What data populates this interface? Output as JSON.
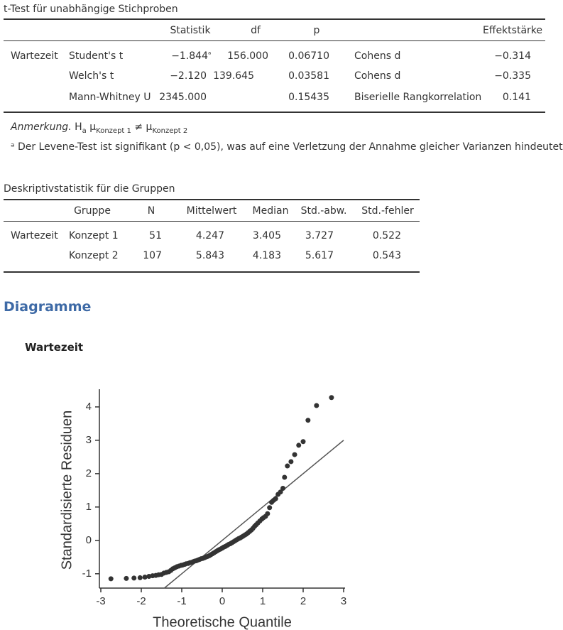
{
  "ttest": {
    "title": "t-Test für unabhängige Stichproben",
    "columns": [
      "Statistik",
      "df",
      "p",
      "Effektstärke"
    ],
    "variable": "Wartezeit",
    "rows": [
      {
        "test": "Student's t",
        "statistic": "−1.844",
        "mark": "ᵃ",
        "df": "156.000",
        "p": "0.06710",
        "effect_type": "Cohens d",
        "effect": "−0.314"
      },
      {
        "test": "Welch's t",
        "statistic": "−2.120",
        "df": "139.645",
        "p": "0.03581",
        "effect_type": "Cohens d",
        "effect": "−0.335"
      },
      {
        "test": "Mann-Whitney U",
        "statistic": "2345.000",
        "p": "0.15435",
        "effect_type": "Biserielle Rangkorrelation",
        "effect": "0.141"
      }
    ],
    "note": {
      "label": "Anmerkung.",
      "h": "H",
      "h_sub": "a",
      "mu1": "μ",
      "sub1": "Konzept 1",
      "neq": "≠",
      "mu2": "μ",
      "sub2": "Konzept 2"
    },
    "footnote": {
      "mark": "ᵃ",
      "text": "Der Levene-Test ist signifikant (p < 0,05), was auf eine Verletzung der Annahme gleicher Varianzen hindeutet"
    }
  },
  "descriptives": {
    "title": "Deskriptivstatistik für die Gruppen",
    "columns": [
      "Gruppe",
      "N",
      "Mittelwert",
      "Median",
      "Std.-abw.",
      "Std.-fehler"
    ],
    "variable": "Wartezeit",
    "rows": [
      [
        "Konzept 1",
        "51",
        "4.247",
        "3.405",
        "3.727",
        "0.522"
      ],
      [
        "Konzept 2",
        "107",
        "5.843",
        "4.183",
        "5.617",
        "0.543"
      ]
    ]
  },
  "section_heading": "Diagramme",
  "chart_data": {
    "type": "scatter",
    "title": "Wartezeit",
    "x_label": "Theoretische Quantile",
    "y_label": "Standardisierte Residuen",
    "xlim": [
      -3,
      3
    ],
    "ylim": [
      -1.43,
      4.53
    ],
    "xticks": [
      -3,
      -2,
      -1,
      0,
      1,
      2,
      3
    ],
    "yticks": [
      -1,
      0,
      1,
      2,
      3,
      4
    ],
    "color": "#333333",
    "reference_line": true,
    "x": [
      -2.75,
      -2.37,
      -2.18,
      -2.03,
      -1.91,
      -1.81,
      -1.72,
      -1.64,
      -1.57,
      -1.5,
      -1.44,
      -1.38,
      -1.32,
      -1.27,
      -1.22,
      -1.17,
      -1.12,
      -1.07,
      -1.02,
      -0.98,
      -0.93,
      -0.89,
      -0.84,
      -0.8,
      -0.76,
      -0.72,
      -0.68,
      -0.64,
      -0.6,
      -0.56,
      -0.52,
      -0.48,
      -0.44,
      -0.4,
      -0.36,
      -0.32,
      -0.28,
      -0.24,
      -0.2,
      -0.16,
      -0.12,
      -0.08,
      -0.04,
      0,
      0.04,
      0.08,
      0.12,
      0.16,
      0.2,
      0.24,
      0.28,
      0.32,
      0.36,
      0.4,
      0.44,
      0.48,
      0.52,
      0.56,
      0.6,
      0.64,
      0.68,
      0.72,
      0.76,
      0.8,
      0.84,
      0.88,
      0.93,
      0.98,
      1.02,
      1.07,
      1.12,
      1.17,
      1.22,
      1.27,
      1.32,
      1.38,
      1.44,
      1.5,
      1.54,
      1.61,
      1.7,
      1.79,
      1.89,
      2.0,
      2.12,
      2.33,
      2.7
    ],
    "values": [
      -1.15,
      -1.14,
      -1.13,
      -1.12,
      -1.1,
      -1.08,
      -1.06,
      -1.05,
      -1.03,
      -1.02,
      -0.98,
      -0.96,
      -0.94,
      -0.9,
      -0.85,
      -0.82,
      -0.79,
      -0.77,
      -0.75,
      -0.74,
      -0.72,
      -0.7,
      -0.69,
      -0.67,
      -0.66,
      -0.64,
      -0.62,
      -0.61,
      -0.59,
      -0.57,
      -0.55,
      -0.54,
      -0.52,
      -0.5,
      -0.48,
      -0.46,
      -0.43,
      -0.4,
      -0.37,
      -0.34,
      -0.31,
      -0.28,
      -0.26,
      -0.23,
      -0.2,
      -0.18,
      -0.15,
      -0.12,
      -0.1,
      -0.07,
      -0.04,
      -0.01,
      0.02,
      0.05,
      0.07,
      0.1,
      0.13,
      0.16,
      0.19,
      0.23,
      0.27,
      0.31,
      0.36,
      0.42,
      0.47,
      0.52,
      0.58,
      0.64,
      0.68,
      0.72,
      0.8,
      0.98,
      1.14,
      1.2,
      1.25,
      1.38,
      1.45,
      1.56,
      1.89,
      2.23,
      2.36,
      2.57,
      2.85,
      2.96,
      3.6,
      4.04,
      4.28
    ]
  }
}
